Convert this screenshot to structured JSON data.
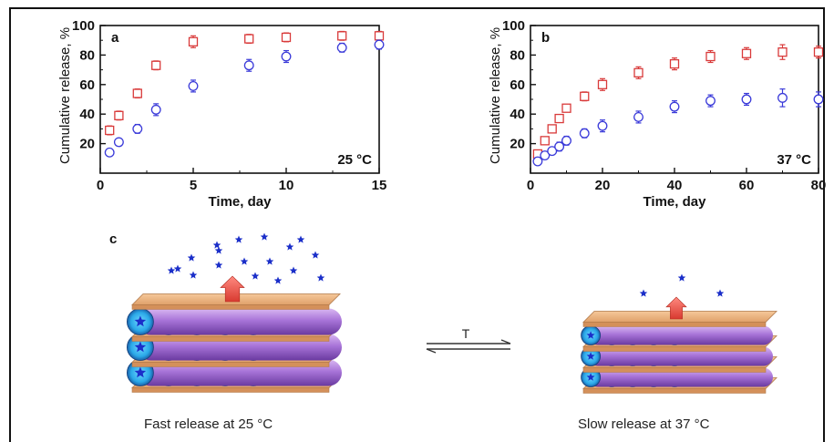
{
  "chart_data": [
    {
      "type": "scatter",
      "panel_label": "a",
      "xlabel": "Time, day",
      "ylabel": "Cumulative release, %",
      "annotation": "25 °C",
      "xlim": [
        0,
        15
      ],
      "ylim": [
        0,
        100
      ],
      "x_ticks": [
        0,
        5,
        10,
        15
      ],
      "y_ticks": [
        20,
        40,
        60,
        80,
        100
      ],
      "series": [
        {
          "color": "#d93a3a",
          "marker": "square",
          "x": [
            0.5,
            1,
            2,
            3,
            5,
            8,
            10,
            13,
            15
          ],
          "y": [
            29,
            39,
            54,
            73,
            89,
            91,
            92,
            93,
            93
          ],
          "err": [
            3,
            3,
            3,
            3,
            4,
            3,
            3,
            3,
            3
          ]
        },
        {
          "color": "#3a3ad9",
          "marker": "circle",
          "x": [
            0.5,
            1,
            2,
            3,
            5,
            8,
            10,
            13,
            15
          ],
          "y": [
            14,
            21,
            30,
            43,
            59,
            73,
            79,
            85,
            87
          ],
          "err": [
            2,
            2,
            3,
            4,
            4,
            4,
            4,
            3,
            3
          ]
        }
      ]
    },
    {
      "type": "scatter",
      "panel_label": "b",
      "xlabel": "Time, day",
      "ylabel": "Cumulative release, %",
      "annotation": "37 °C",
      "xlim": [
        0,
        80
      ],
      "ylim": [
        0,
        100
      ],
      "x_ticks": [
        0,
        20,
        40,
        60,
        80
      ],
      "y_ticks": [
        20,
        40,
        60,
        80,
        100
      ],
      "series": [
        {
          "color": "#d93a3a",
          "marker": "square",
          "x": [
            2,
            4,
            6,
            8,
            10,
            15,
            20,
            30,
            40,
            50,
            60,
            70,
            80
          ],
          "y": [
            13,
            22,
            30,
            37,
            44,
            52,
            60,
            68,
            74,
            79,
            81,
            82,
            82
          ],
          "err": [
            2,
            2,
            2,
            2,
            2,
            3,
            4,
            4,
            4,
            4,
            4,
            5,
            4
          ]
        },
        {
          "color": "#3a3ad9",
          "marker": "circle",
          "x": [
            2,
            4,
            6,
            8,
            10,
            15,
            20,
            30,
            40,
            50,
            60,
            70,
            80
          ],
          "y": [
            8,
            12,
            15,
            18,
            22,
            27,
            32,
            38,
            45,
            49,
            50,
            51,
            50
          ],
          "err": [
            2,
            2,
            2,
            3,
            3,
            3,
            4,
            4,
            4,
            4,
            4,
            6,
            5
          ]
        }
      ]
    }
  ],
  "diagram": {
    "panel_label": "c",
    "arrow_label": "T",
    "caption_left": "Fast release at 25 °C",
    "caption_right": "Slow release at 37 °C"
  }
}
